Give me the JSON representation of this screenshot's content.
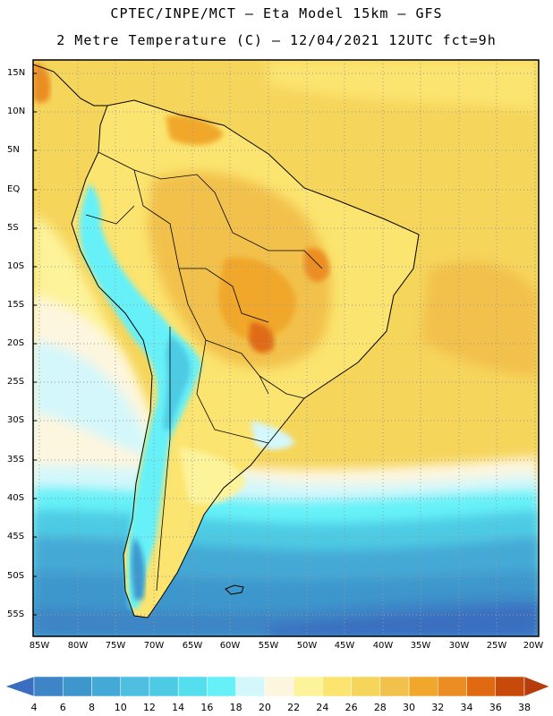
{
  "title": {
    "line1": "CPTEC/INPE/MCT —  Eta Model 15km — GFS",
    "line2": "2 Metre Temperature (C) — 12/04/2021 12UTC fct=9h"
  },
  "map": {
    "lat_labels": [
      "15N",
      "10N",
      "5N",
      "EQ",
      "5S",
      "10S",
      "15S",
      "20S",
      "25S",
      "30S",
      "35S",
      "40S",
      "45S",
      "50S",
      "55S"
    ],
    "lon_labels": [
      "85W",
      "80W",
      "75W",
      "70W",
      "65W",
      "60W",
      "55W",
      "50W",
      "45W",
      "40W",
      "35W",
      "30W",
      "25W",
      "20W"
    ],
    "grid": "dotted",
    "extent": {
      "lon": [
        -86,
        -20
      ],
      "lat": [
        -58,
        16
      ]
    }
  },
  "colorbar": {
    "labels": [
      "4",
      "6",
      "8",
      "10",
      "12",
      "14",
      "16",
      "18",
      "20",
      "22",
      "24",
      "26",
      "28",
      "30",
      "32",
      "34",
      "36",
      "38"
    ],
    "colors": [
      "#3a6ec0",
      "#3d85c6",
      "#3d97cc",
      "#44a9d6",
      "#4ebfe0",
      "#4dcbe4",
      "#55dfee",
      "#66f1f8",
      "#d4f7fb",
      "#fdf6df",
      "#fdf39a",
      "#fbe46f",
      "#f6d55b",
      "#f2c14b",
      "#f0a72c",
      "#ec8d24",
      "#e06a12",
      "#c84a0a",
      "#b53c0b"
    ],
    "unit": "C"
  }
}
